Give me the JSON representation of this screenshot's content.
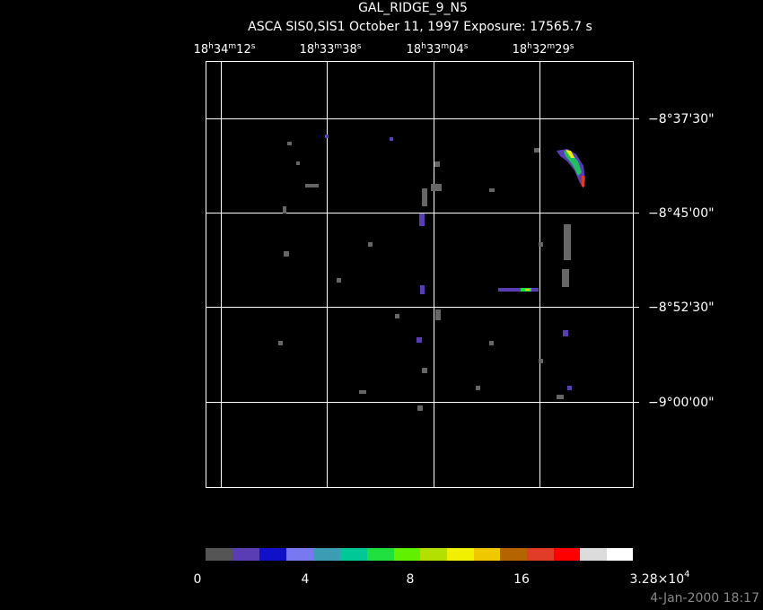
{
  "header": {
    "title": "GAL_RIDGE_9_N5",
    "subtitle": "ASCA SIS0,SIS1 October 11, 1997 Exposure: 17565.7 s"
  },
  "ra_labels": [
    [
      "18",
      "h",
      "34",
      "m",
      "12",
      "s"
    ],
    [
      "18",
      "h",
      "33",
      "m",
      "38",
      "s"
    ],
    [
      "18",
      "h",
      "33",
      "m",
      "04",
      "s"
    ],
    [
      "18",
      "h",
      "32",
      "m",
      "29",
      "s"
    ]
  ],
  "dec_labels": [
    "−8°37'30\"",
    "−8°45'00\"",
    "−8°52'30\"",
    "−9°00'00\""
  ],
  "colorbar_labels": [
    "0",
    "4",
    "8",
    "16",
    [
      "3.28×10",
      "4"
    ]
  ],
  "timestamp": "4-Jan-2000 18:17"
}
